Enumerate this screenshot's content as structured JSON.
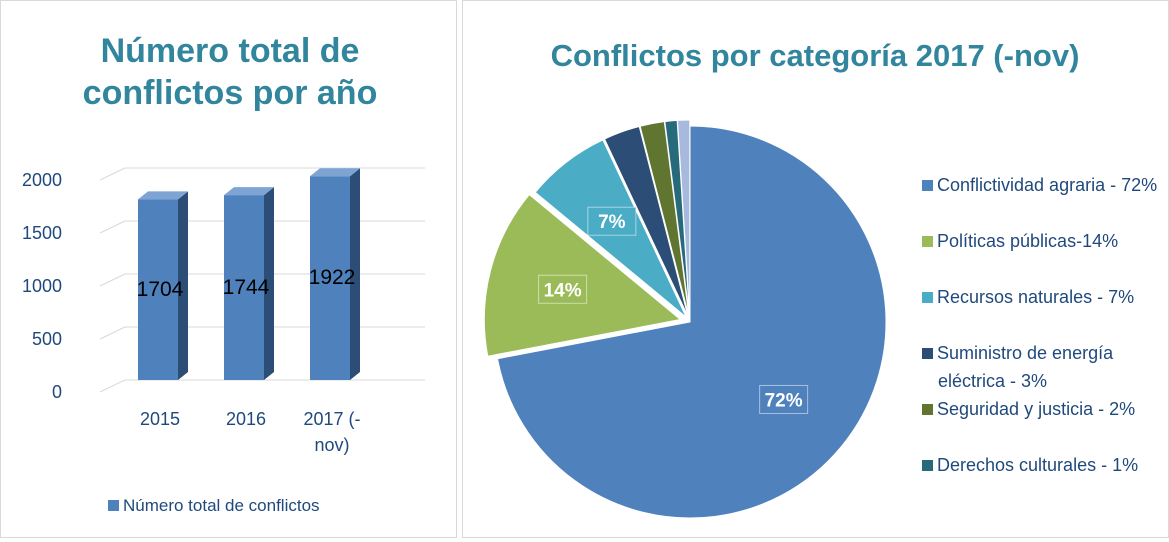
{
  "chart_data": [
    {
      "type": "bar",
      "title": "Número total de conflictos por año",
      "categories": [
        "2015",
        "2016",
        "2017 (-nov)"
      ],
      "series": [
        {
          "name": "Número total de conflictos",
          "color": "#4f81bd",
          "values": [
            1704,
            1744,
            1922
          ]
        }
      ],
      "ylim": [
        0,
        2000
      ],
      "yticks": [
        0,
        500,
        1000,
        1500,
        2000
      ],
      "grid": true,
      "legend": "bottom"
    },
    {
      "type": "pie",
      "title": "Conflictos por categoría 2017 (-nov)",
      "categories": [
        "Conflictividad agraria - 72%",
        "Políticas públicas-14%",
        "Recursos naturales - 7%",
        "Suministro de energía eléctrica - 3%",
        "Seguridad y justicia - 2%",
        "Derechos culturales - 1%",
        null
      ],
      "values": [
        72,
        14,
        7,
        3,
        2,
        1,
        1
      ],
      "value_labels": [
        "72%",
        "14%",
        "7%",
        null,
        null,
        null,
        null
      ],
      "colors": [
        "#4f81bd",
        "#9bbb59",
        "#4bacc6",
        "#2c4d75",
        "#5f7530",
        "#276a7c",
        "#a7b9dc"
      ],
      "legend": "right"
    }
  ]
}
